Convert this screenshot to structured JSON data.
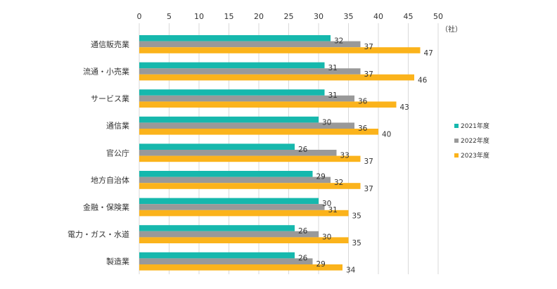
{
  "chart_data": {
    "type": "bar",
    "orientation": "horizontal",
    "unit": "（社）",
    "xlim": [
      0,
      50
    ],
    "x_ticks": [
      0,
      5,
      10,
      15,
      20,
      25,
      30,
      35,
      40,
      45,
      50
    ],
    "grid": true,
    "legend_position": "right",
    "categories": [
      "通信販売業",
      "流通・小売業",
      "サービス業",
      "通信業",
      "官公庁",
      "地方自治体",
      "金融・保険業",
      "電力・ガス・水道",
      "製造業"
    ],
    "series": [
      {
        "name": "2021年度",
        "color": "#16b8ad",
        "values": [
          32,
          31,
          31,
          30,
          26,
          29,
          30,
          26,
          26
        ]
      },
      {
        "name": "2022年度",
        "color": "#999999",
        "values": [
          37,
          37,
          36,
          36,
          33,
          32,
          31,
          30,
          29
        ]
      },
      {
        "name": "2023年度",
        "color": "#fbb31b",
        "values": [
          47,
          46,
          43,
          40,
          37,
          37,
          35,
          35,
          34
        ]
      }
    ]
  }
}
